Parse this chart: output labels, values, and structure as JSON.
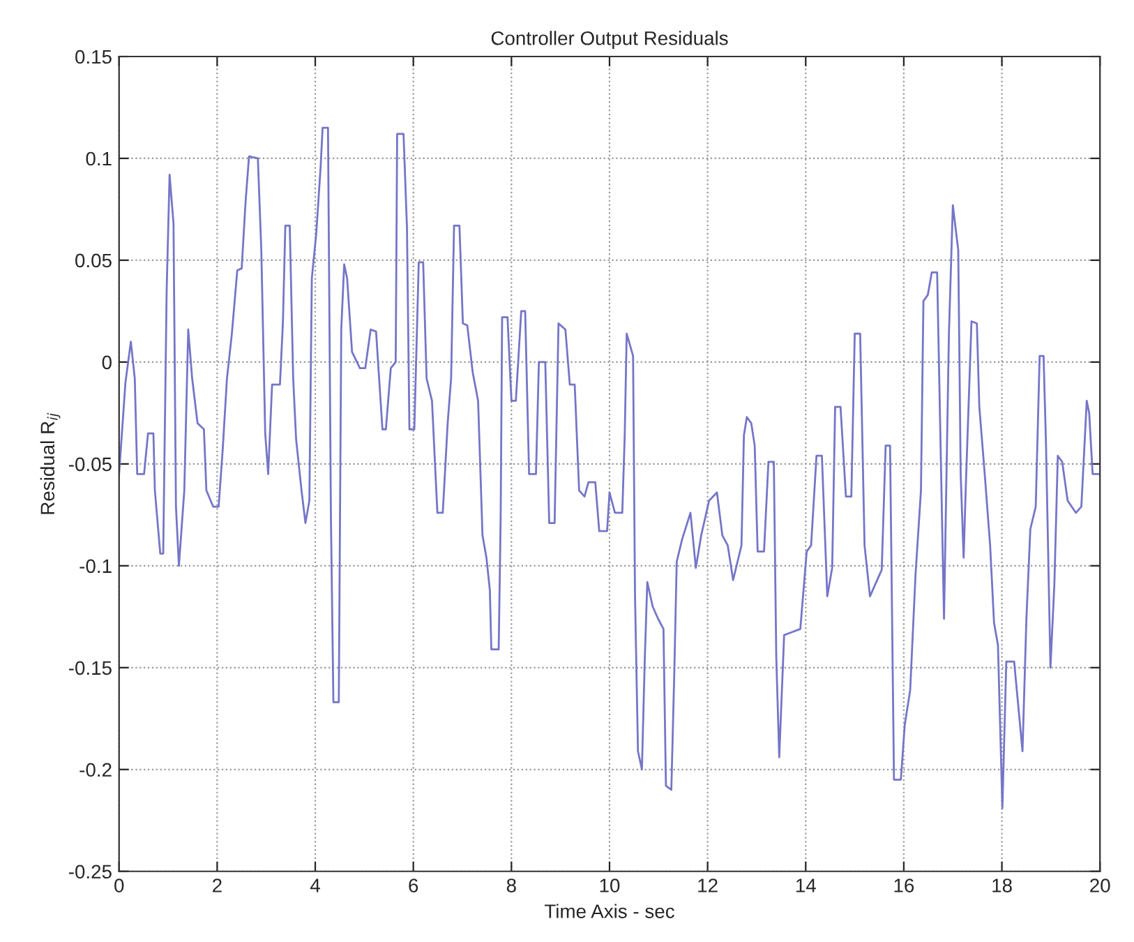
{
  "chart_data": {
    "type": "line",
    "title": "Controller Output Residuals",
    "xlabel": "Time Axis - sec",
    "ylabel": "Residual R$_{ij}$",
    "xlim": [
      0,
      20
    ],
    "ylim": [
      -0.25,
      0.15
    ],
    "xticks": [
      0,
      2,
      4,
      6,
      8,
      10,
      12,
      14,
      16,
      18,
      20
    ],
    "yticks": [
      -0.25,
      -0.2,
      -0.15,
      -0.1,
      -0.05,
      0,
      0.05,
      0.1,
      0.15
    ],
    "grid": true,
    "line_style": "solid",
    "series": [
      {
        "color": "#7575c8",
        "x": [
          0,
          0.13,
          0.24,
          0.32,
          0.37,
          0.51,
          0.59,
          0.7,
          0.73,
          0.84,
          0.9,
          0.97,
          1.03,
          1.11,
          1.16,
          1.22,
          1.33,
          1.41,
          1.49,
          1.6,
          1.73,
          1.78,
          1.92,
          2.03,
          2.11,
          2.2,
          2.3,
          2.41,
          2.5,
          2.58,
          2.65,
          2.83,
          2.9,
          2.98,
          3.04,
          3.12,
          3.28,
          3.34,
          3.39,
          3.48,
          3.55,
          3.61,
          3.72,
          3.8,
          3.88,
          3.93,
          4.02,
          4.11,
          4.15,
          4.26,
          4.32,
          4.37,
          4.48,
          4.53,
          4.59,
          4.65,
          4.75,
          4.91,
          5.02,
          5.13,
          5.24,
          5.37,
          5.44,
          5.54,
          5.64,
          5.67,
          5.8,
          5.87,
          5.92,
          6.02,
          6.11,
          6.2,
          6.27,
          6.38,
          6.49,
          6.6,
          6.7,
          6.77,
          6.83,
          6.94,
          7.01,
          7.1,
          7.21,
          7.32,
          7.41,
          7.49,
          7.56,
          7.59,
          7.74,
          7.78,
          7.81,
          7.92,
          8.0,
          8.09,
          8.2,
          8.28,
          8.36,
          8.5,
          8.56,
          8.69,
          8.77,
          8.88,
          8.96,
          9.1,
          9.19,
          9.29,
          9.38,
          9.49,
          9.57,
          9.71,
          9.79,
          9.95,
          10.0,
          10.11,
          10.26,
          10.31,
          10.35,
          10.48,
          10.52,
          10.58,
          10.66,
          10.72,
          10.77,
          10.88,
          10.99,
          11.1,
          11.15,
          11.26,
          11.32,
          11.37,
          11.48,
          11.65,
          11.76,
          11.87,
          12.03,
          12.19,
          12.3,
          12.41,
          12.52,
          12.69,
          12.74,
          12.8,
          12.89,
          12.96,
          13.02,
          13.15,
          13.24,
          13.35,
          13.4,
          13.46,
          13.56,
          13.67,
          13.89,
          14.02,
          14.11,
          14.22,
          14.33,
          14.44,
          14.54,
          14.6,
          14.71,
          14.82,
          14.93,
          15.0,
          15.11,
          15.2,
          15.31,
          15.42,
          15.55,
          15.63,
          15.72,
          15.8,
          15.94,
          16.02,
          16.13,
          16.24,
          16.35,
          16.4,
          16.49,
          16.57,
          16.68,
          16.75,
          16.82,
          16.92,
          17.0,
          17.11,
          17.16,
          17.22,
          17.27,
          17.38,
          17.49,
          17.54,
          17.65,
          17.76,
          17.84,
          17.92,
          18.01,
          18.09,
          18.25,
          18.42,
          18.5,
          18.58,
          18.69,
          18.77,
          18.85,
          18.9,
          18.99,
          19.07,
          19.14,
          19.23,
          19.34,
          19.51,
          19.62,
          19.73,
          19.78,
          19.85,
          20
        ],
        "values": [
          -0.055,
          -0.01,
          0.01,
          -0.008,
          -0.055,
          -0.055,
          -0.035,
          -0.035,
          -0.063,
          -0.094,
          -0.094,
          0.035,
          0.092,
          0.068,
          -0.071,
          -0.1,
          -0.063,
          0.016,
          -0.008,
          -0.03,
          -0.033,
          -0.063,
          -0.071,
          -0.071,
          -0.044,
          -0.008,
          0.014,
          0.045,
          0.046,
          0.079,
          0.101,
          0.1,
          0.055,
          -0.035,
          -0.055,
          -0.011,
          -0.011,
          0.019,
          0.067,
          0.067,
          -0.008,
          -0.038,
          -0.063,
          -0.079,
          -0.068,
          0.041,
          0.063,
          0.096,
          0.115,
          0.115,
          -0.077,
          -0.167,
          -0.167,
          0.016,
          0.048,
          0.041,
          0.005,
          -0.003,
          -0.003,
          0.016,
          0.015,
          -0.033,
          -0.033,
          -0.003,
          0,
          0.112,
          0.112,
          0.066,
          -0.033,
          -0.033,
          0.049,
          0.049,
          -0.008,
          -0.019,
          -0.074,
          -0.074,
          -0.03,
          -0.008,
          0.067,
          0.067,
          0.019,
          0.018,
          -0.005,
          -0.019,
          -0.085,
          -0.096,
          -0.112,
          -0.141,
          -0.141,
          -0.077,
          0.022,
          0.022,
          -0.019,
          -0.019,
          0.025,
          0.025,
          -0.055,
          -0.055,
          0,
          0,
          -0.079,
          -0.079,
          0.019,
          0.016,
          -0.011,
          -0.011,
          -0.063,
          -0.066,
          -0.059,
          -0.059,
          -0.083,
          -0.083,
          -0.064,
          -0.074,
          -0.074,
          -0.036,
          0.014,
          0.003,
          -0.115,
          -0.191,
          -0.2,
          -0.145,
          -0.108,
          -0.12,
          -0.126,
          -0.131,
          -0.208,
          -0.21,
          -0.153,
          -0.098,
          -0.087,
          -0.074,
          -0.101,
          -0.085,
          -0.068,
          -0.064,
          -0.085,
          -0.09,
          -0.107,
          -0.09,
          -0.036,
          -0.027,
          -0.03,
          -0.041,
          -0.093,
          -0.093,
          -0.049,
          -0.049,
          -0.145,
          -0.194,
          -0.134,
          -0.133,
          -0.131,
          -0.093,
          -0.09,
          -0.046,
          -0.046,
          -0.115,
          -0.101,
          -0.022,
          -0.022,
          -0.066,
          -0.066,
          0.014,
          0.014,
          -0.09,
          -0.115,
          -0.109,
          -0.102,
          -0.041,
          -0.041,
          -0.205,
          -0.205,
          -0.178,
          -0.161,
          -0.104,
          -0.063,
          0.03,
          0.033,
          0.044,
          0.044,
          -0.041,
          -0.126,
          0.014,
          0.077,
          0.055,
          -0.055,
          -0.096,
          -0.057,
          0.02,
          0.019,
          -0.022,
          -0.055,
          -0.09,
          -0.128,
          -0.139,
          -0.219,
          -0.147,
          -0.147,
          -0.191,
          -0.126,
          -0.082,
          -0.071,
          0.003,
          0.003,
          -0.041,
          -0.15,
          -0.109,
          -0.046,
          -0.049,
          -0.068,
          -0.074,
          -0.071,
          -0.019,
          -0.025,
          -0.055,
          -0.055
        ]
      }
    ]
  }
}
